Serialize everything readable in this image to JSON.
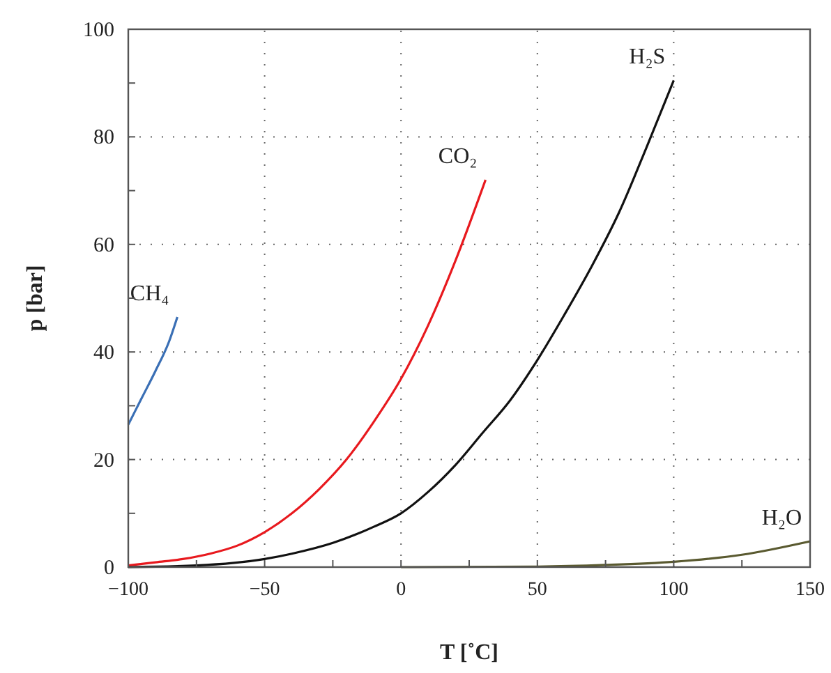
{
  "chart_data": {
    "type": "line",
    "xlabel": "T [˚C]",
    "ylabel": "p [bar]",
    "xlim": [
      -100,
      150
    ],
    "ylim": [
      0,
      100
    ],
    "xticks": [
      -100,
      {
        "value": -75,
        "label": null
      },
      -50,
      {
        "value": -25,
        "label": null
      },
      0,
      {
        "value": 25,
        "label": null
      },
      50,
      {
        "value": 75,
        "label": null
      },
      100,
      {
        "value": 125,
        "label": null
      },
      150
    ],
    "yticks": [
      0,
      {
        "value": 10,
        "label": null
      },
      20,
      {
        "value": 30,
        "label": null
      },
      40,
      {
        "value": 50,
        "label": null
      },
      60,
      {
        "value": 70,
        "label": null
      },
      80,
      {
        "value": 90,
        "label": null
      },
      100
    ],
    "grid": true,
    "line_style": "solid",
    "marker": "none",
    "series": [
      {
        "name": "CH₄",
        "color": "#3a6fb5",
        "x": [
          -100,
          -95,
          -90,
          -85,
          -82
        ],
        "values": [
          26.5,
          31.5,
          36.5,
          42,
          46.5
        ]
      },
      {
        "name": "CO₂",
        "color": "#e8191e",
        "x": [
          -100,
          -90,
          -80,
          -70,
          -60,
          -50,
          -40,
          -30,
          -20,
          -10,
          0,
          10,
          20,
          31
        ],
        "values": [
          0.3,
          0.9,
          1.5,
          2.5,
          4,
          6.5,
          10,
          14.5,
          20,
          27,
          35,
          45,
          57,
          72
        ]
      },
      {
        "name": "H₂S",
        "color": "#111111",
        "x": [
          -100,
          -75,
          -50,
          -40,
          -25,
          -10,
          0,
          10,
          20,
          30,
          40,
          50,
          60,
          70,
          80,
          90,
          100
        ],
        "values": [
          0,
          0.3,
          1.5,
          2.5,
          4.5,
          7.5,
          10,
          14,
          19,
          25,
          31,
          38.5,
          47,
          56,
          66,
          78,
          90.5
        ]
      },
      {
        "name": "H₂O",
        "color": "#5a5a30",
        "x": [
          0,
          50,
          75,
          100,
          125,
          150
        ],
        "values": [
          0,
          0.1,
          0.4,
          1,
          2.3,
          4.8
        ]
      }
    ]
  }
}
